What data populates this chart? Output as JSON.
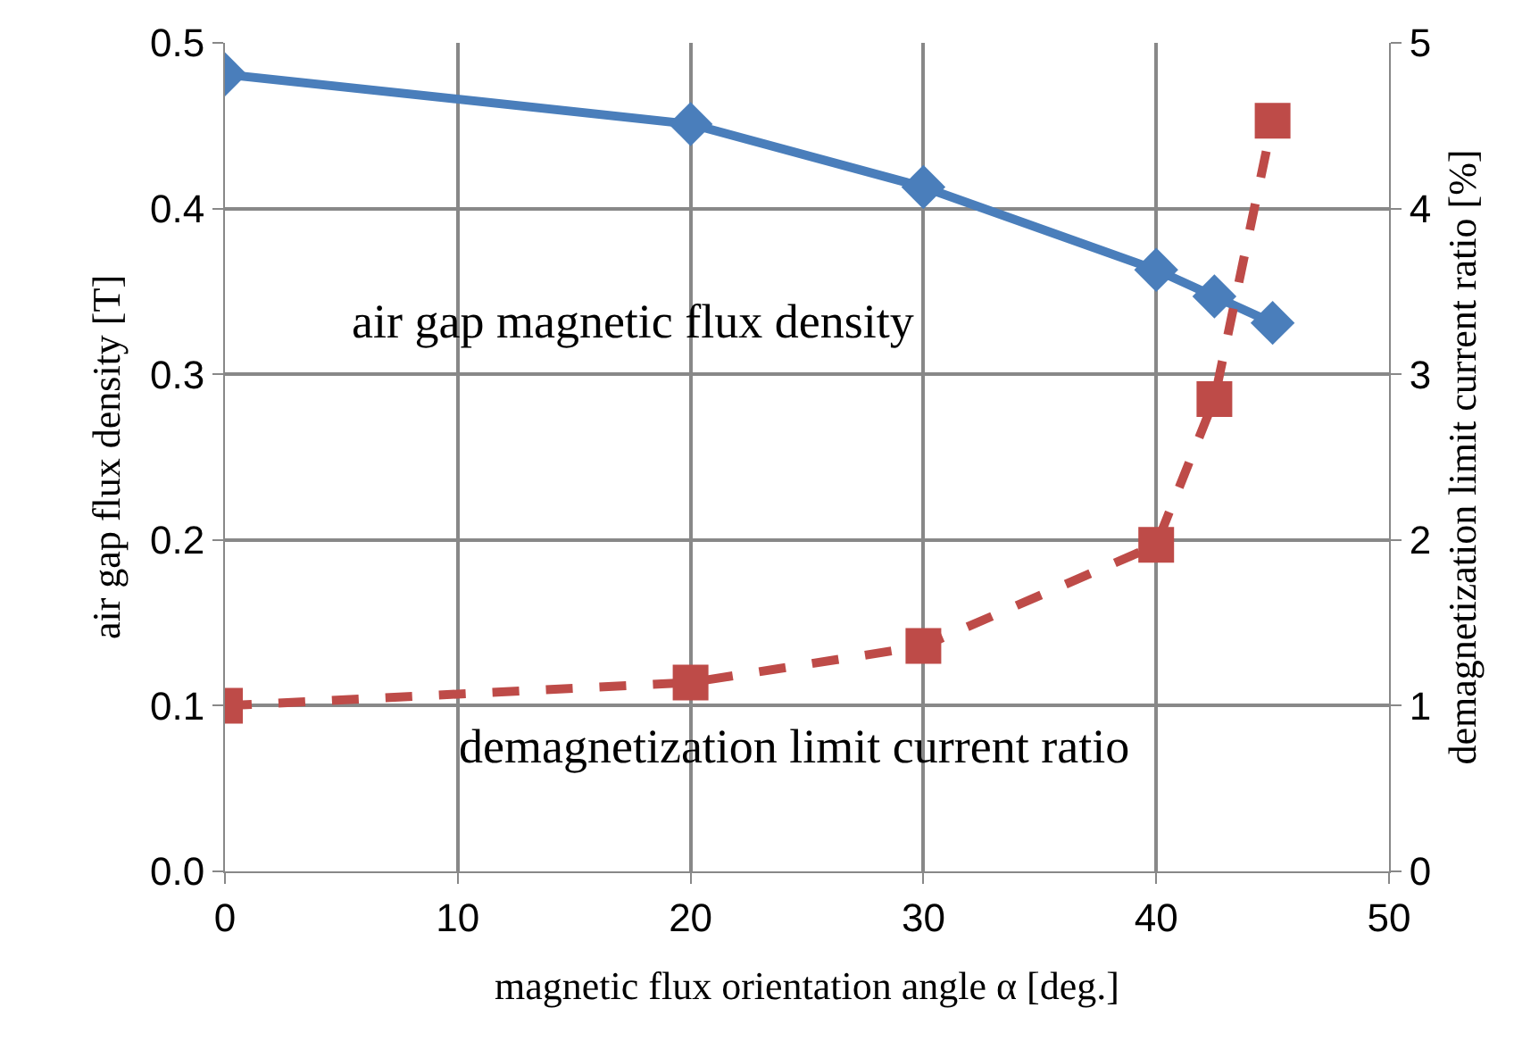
{
  "chart_data": {
    "type": "line",
    "xlabel": "magnetic flux orientation angle α [deg.]",
    "ylabel": "air gap flux density [T]",
    "y2label": "demagnetization limit current ratio [%]",
    "x": [
      0,
      20,
      30,
      40,
      42.5,
      45
    ],
    "series": [
      {
        "name": "air gap magnetic flux density",
        "color": "#4a7ebb",
        "values": [
          0.481,
          0.451,
          0.413,
          0.363,
          0.347,
          0.331
        ],
        "marker": "diamond",
        "line_style": "solid"
      },
      {
        "name": "demagnetization limit current ratio",
        "color": "#be4b48",
        "values": [
          1.0,
          1.14,
          1.36,
          1.97,
          2.85,
          4.53
        ],
        "marker": "square",
        "line_style": "dashed",
        "axis": "y2"
      }
    ],
    "xlim": [
      0,
      50
    ],
    "xticks": [
      0,
      10,
      20,
      30,
      40,
      50
    ],
    "ylim": [
      0,
      0.5
    ],
    "yticks": [
      {
        "value": 0,
        "label": "0.0"
      },
      0.1,
      0.2,
      0.3,
      0.4,
      0.5
    ],
    "y2lim": [
      0,
      5
    ],
    "y2ticks": [
      0,
      1,
      2,
      3,
      4,
      5
    ],
    "grid": true,
    "legend": false
  }
}
